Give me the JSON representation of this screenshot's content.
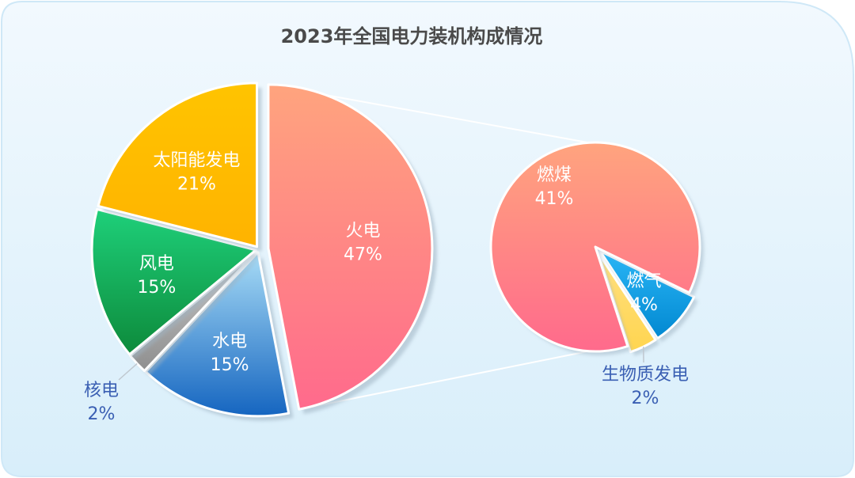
{
  "chart_data": {
    "type": "pie",
    "title": "2023年全国电力装机构成情况",
    "main_pie": {
      "slices": [
        {
          "label": "火电",
          "percent_text": "47%",
          "value": 47,
          "color_top": "#ffa47e",
          "color_bottom": "#ff6a8c",
          "label_color": "#ffffff"
        },
        {
          "label": "水电",
          "percent_text": "15%",
          "value": 15,
          "color_top": "#a8dcf6",
          "color_bottom": "#1565c0",
          "label_color": "#ffffff"
        },
        {
          "label": "核电",
          "percent_text": "2%",
          "value": 2,
          "color_top": "#c8c8c8",
          "color_bottom": "#8f8f8f",
          "label_color": "#3a5fb3"
        },
        {
          "label": "风电",
          "percent_text": "15%",
          "value": 15,
          "color_top": "#1ed07a",
          "color_bottom": "#0d8a3b",
          "label_color": "#ffffff"
        },
        {
          "label": "太阳能发电",
          "percent_text": "21%",
          "value": 21,
          "color_top": "#ffc400",
          "color_bottom": "#ffb300",
          "label_color": "#ffffff"
        }
      ]
    },
    "breakdown_pie": {
      "of": "火电",
      "slices": [
        {
          "label": "燃煤",
          "percent_text": "41%",
          "value": 41,
          "color_top": "#ffa47e",
          "color_bottom": "#ff6a8c",
          "label_color": "#ffffff"
        },
        {
          "label": "燃气",
          "percent_text": "4%",
          "value": 4,
          "color_top": "#29b6f6",
          "color_bottom": "#0288d1",
          "label_color": "#ffffff"
        },
        {
          "label": "生物质发电",
          "percent_text": "2%",
          "value": 2,
          "color_top": "#ffe082",
          "color_bottom": "#ffd54f",
          "label_color": "#3a5fb3"
        }
      ]
    },
    "legend": "none",
    "grid": false
  },
  "colors": {
    "panel_top": "#f2f9fe",
    "panel_bottom": "#d8eefa",
    "title": "#4a4a4a",
    "outside_label": "#3a5fb3",
    "connector": "#ffffff"
  }
}
